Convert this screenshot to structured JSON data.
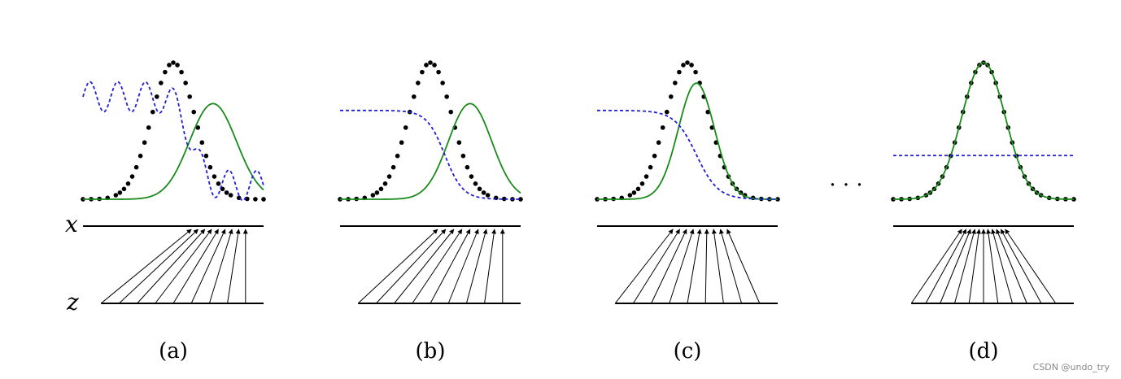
{
  "labels": {
    "x_axis": "x",
    "z_axis": "z",
    "ellipsis": "· · ·",
    "watermark": "CSDN @undo_try"
  },
  "colors": {
    "data_distribution": "#000000",
    "generator_distribution": "#1a8a1a",
    "discriminator": "#1f1fd8",
    "axis": "#000000"
  },
  "panels": [
    {
      "id": "a",
      "label": "(a)",
      "data": {
        "mu": 0.5,
        "sigma": 0.12
      },
      "generator": {
        "mu": 0.72,
        "sigma": 0.13,
        "amplitude": 0.7
      },
      "discriminator": {
        "type": "wavy",
        "high": 0.75,
        "low": 0.1
      },
      "mapping": {
        "z_start": 0.1,
        "z_end": 0.9,
        "x_start": 0.6,
        "x_end": 0.9,
        "count": 9
      }
    },
    {
      "id": "b",
      "label": "(b)",
      "data": {
        "mu": 0.5,
        "sigma": 0.12
      },
      "generator": {
        "mu": 0.72,
        "sigma": 0.12,
        "amplitude": 0.7
      },
      "discriminator": {
        "type": "smooth",
        "high": 0.65,
        "low": 0.0,
        "center": 0.58,
        "width": 0.05
      },
      "mapping": {
        "z_start": 0.1,
        "z_end": 0.9,
        "x_start": 0.54,
        "x_end": 0.9,
        "count": 9
      }
    },
    {
      "id": "c",
      "label": "(c)",
      "data": {
        "mu": 0.5,
        "sigma": 0.12
      },
      "generator": {
        "mu": 0.55,
        "sigma": 0.1,
        "amplitude": 0.85
      },
      "discriminator": {
        "type": "smooth",
        "high": 0.65,
        "low": 0.0,
        "center": 0.55,
        "width": 0.06
      },
      "mapping": {
        "z_start": 0.1,
        "z_end": 0.9,
        "x_start": 0.42,
        "x_end": 0.72,
        "count": 9
      }
    },
    {
      "id": "d",
      "label": "(d)",
      "data": {
        "mu": 0.5,
        "sigma": 0.12
      },
      "generator": {
        "mu": 0.5,
        "sigma": 0.12,
        "amplitude": 1.0
      },
      "discriminator": {
        "type": "flat",
        "level": 0.32
      },
      "mapping": {
        "z_start": 0.1,
        "z_end": 0.9,
        "x_start": 0.38,
        "x_end": 0.62,
        "count": 11
      }
    }
  ]
}
